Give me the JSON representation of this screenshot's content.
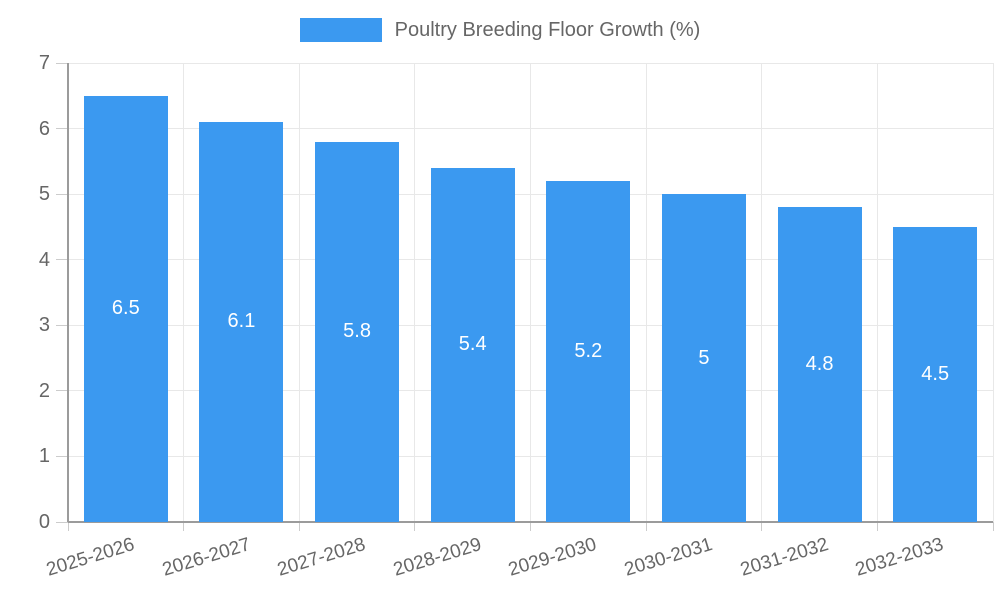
{
  "legend": {
    "label": "Poultry Breeding Floor Growth (%)"
  },
  "chart_data": {
    "type": "bar",
    "title": "",
    "series_name": "Poultry Breeding Floor Growth (%)",
    "categories": [
      "2025-2026",
      "2026-2027",
      "2027-2028",
      "2028-2029",
      "2029-2030",
      "2030-2031",
      "2031-2032",
      "2032-2033"
    ],
    "values": [
      6.5,
      6.1,
      5.8,
      5.4,
      5.2,
      5,
      4.8,
      4.5
    ],
    "value_labels": [
      "6.5",
      "6.1",
      "5.8",
      "5.4",
      "5.2",
      "5",
      "4.8",
      "4.5"
    ],
    "xlabel": "",
    "ylabel": "",
    "ylim": [
      0,
      7
    ],
    "yticks": [
      0,
      1,
      2,
      3,
      4,
      5,
      6,
      7
    ],
    "grid": true,
    "legend_position": "top",
    "colors": {
      "bar": "#3B99F0",
      "value_label": "#FFFFFF",
      "axis_text": "#666666",
      "grid_line": "#E8E8E8",
      "axis_line": "#9B9B9B",
      "tick_mark": "#CCCCCC",
      "background": "#FFFFFF"
    }
  }
}
